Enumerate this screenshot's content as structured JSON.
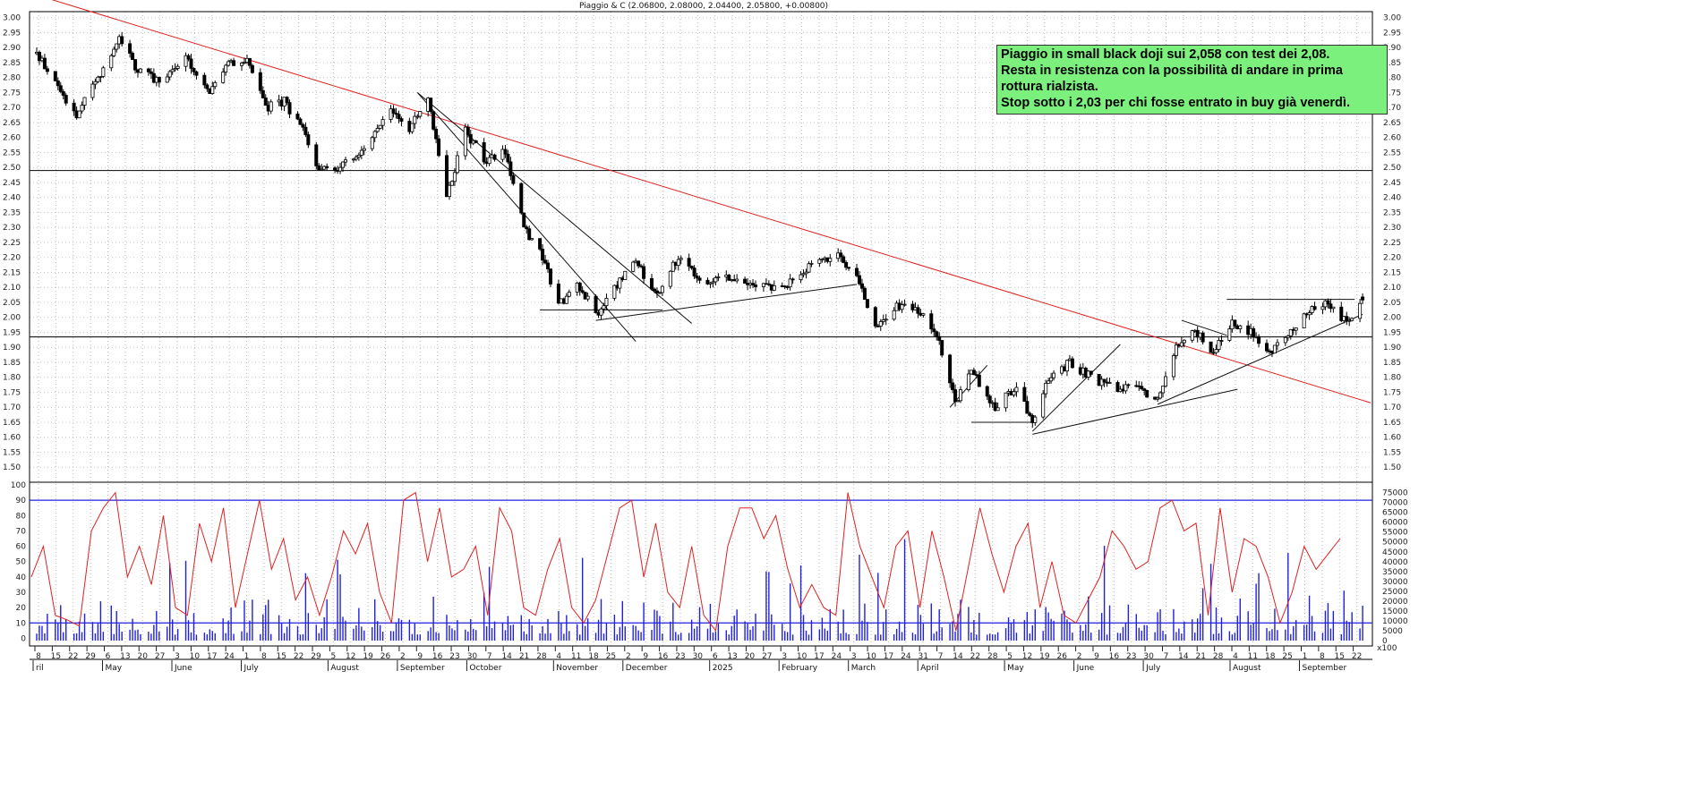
{
  "title": "Piaggio & C (2.06800, 2.08000, 2.04400, 2.05800, +0.00800)",
  "annotation": {
    "lines": [
      "Piaggio in small black doji sui 2,058 con test dei 2,08.",
      "Resta in resistenza con la possibilità di andare in prima",
      "rottura rialzista.",
      "Stop sotto i 2,03 per chi fosse entrato in buy già venerdì."
    ]
  },
  "colors": {
    "price": "#000000",
    "trendline": "#e02020",
    "oscillator": "#e02020",
    "volume": "#2020e0",
    "levels": "#2020e0",
    "note_bg": "#7cf07c"
  },
  "chart_data": [
    {
      "type": "candlestick",
      "ylim": [
        1.45,
        3.02
      ],
      "y_ticks": [
        "3.00",
        "2.95",
        "2.90",
        "2.85",
        "2.80",
        "2.75",
        "2.70",
        "2.65",
        "2.60",
        "2.55",
        "2.50",
        "2.45",
        "2.40",
        "2.35",
        "2.30",
        "2.25",
        "2.20",
        "2.15",
        "2.10",
        "2.05",
        "2.00",
        "1.95",
        "1.90",
        "1.85",
        "1.80",
        "1.75",
        "1.70",
        "1.65",
        "1.60",
        "1.55",
        "1.50"
      ],
      "x_range": [
        "2024-04-29",
        "2025-09-12"
      ],
      "horizontal_levels": [
        2.49,
        1.935
      ],
      "price_path": [
        [
          "2024-04-29",
          2.88
        ],
        [
          "2024-05-08",
          2.75
        ],
        [
          "2024-05-14",
          2.67
        ],
        [
          "2024-05-22",
          2.8
        ],
        [
          "2024-05-30",
          2.94
        ],
        [
          "2024-06-06",
          2.82
        ],
        [
          "2024-06-14",
          2.79
        ],
        [
          "2024-06-24",
          2.87
        ],
        [
          "2024-07-02",
          2.75
        ],
        [
          "2024-07-10",
          2.84
        ],
        [
          "2024-07-17",
          2.86
        ],
        [
          "2024-07-24",
          2.7
        ],
        [
          "2024-07-31",
          2.72
        ],
        [
          "2024-08-07",
          2.62
        ],
        [
          "2024-08-13",
          2.5
        ],
        [
          "2024-08-21",
          2.5
        ],
        [
          "2024-08-30",
          2.57
        ],
        [
          "2024-09-09",
          2.7
        ],
        [
          "2024-09-16",
          2.63
        ],
        [
          "2024-09-23",
          2.74
        ],
        [
          "2024-09-30",
          2.4
        ],
        [
          "2024-10-07",
          2.62
        ],
        [
          "2024-10-15",
          2.52
        ],
        [
          "2024-10-22",
          2.55
        ],
        [
          "2024-10-29",
          2.3
        ],
        [
          "2024-11-05",
          2.2
        ],
        [
          "2024-11-11",
          2.04
        ],
        [
          "2024-11-18",
          2.1
        ],
        [
          "2024-11-26",
          2.02
        ],
        [
          "2024-12-04",
          2.12
        ],
        [
          "2024-12-10",
          2.18
        ],
        [
          "2024-12-18",
          2.08
        ],
        [
          "2024-12-26",
          2.2
        ],
        [
          "2025-01-03",
          2.12
        ],
        [
          "2025-01-15",
          2.14
        ],
        [
          "2025-01-24",
          2.1
        ],
        [
          "2025-02-05",
          2.11
        ],
        [
          "2025-02-14",
          2.18
        ],
        [
          "2025-02-24",
          2.2
        ],
        [
          "2025-03-03",
          2.15
        ],
        [
          "2025-03-10",
          1.96
        ],
        [
          "2025-03-18",
          2.04
        ],
        [
          "2025-03-27",
          2.02
        ],
        [
          "2025-04-03",
          1.92
        ],
        [
          "2025-04-09",
          1.72
        ],
        [
          "2025-04-15",
          1.82
        ],
        [
          "2025-04-24",
          1.7
        ],
        [
          "2025-05-02",
          1.77
        ],
        [
          "2025-05-08",
          1.64
        ],
        [
          "2025-05-13",
          1.78
        ],
        [
          "2025-05-22",
          1.85
        ],
        [
          "2025-05-30",
          1.8
        ],
        [
          "2025-06-06",
          1.77
        ],
        [
          "2025-06-16",
          1.76
        ],
        [
          "2025-06-24",
          1.73
        ],
        [
          "2025-07-01",
          1.9
        ],
        [
          "2025-07-08",
          1.96
        ],
        [
          "2025-07-15",
          1.88
        ],
        [
          "2025-07-22",
          1.98
        ],
        [
          "2025-07-29",
          1.95
        ],
        [
          "2025-08-04",
          1.88
        ],
        [
          "2025-08-12",
          1.94
        ],
        [
          "2025-08-20",
          2.02
        ],
        [
          "2025-08-27",
          2.05
        ],
        [
          "2025-09-03",
          1.98
        ],
        [
          "2025-09-09",
          2.06
        ]
      ],
      "last_candle": {
        "open": 2.068,
        "high": 2.08,
        "low": 2.044,
        "close": 2.058,
        "change": 0.008
      }
    },
    {
      "type": "line",
      "series": [
        {
          "values": [
            40,
            60,
            15,
            12,
            8,
            70,
            85,
            95,
            40,
            60,
            35,
            80,
            20,
            15,
            75,
            50,
            85,
            20,
            55,
            90,
            45,
            65,
            25,
            40,
            15,
            40,
            70,
            55,
            75,
            30,
            10,
            90,
            95,
            50,
            85,
            40,
            45,
            60,
            15,
            85,
            70,
            20,
            15,
            45,
            65,
            20,
            10,
            25,
            55,
            85,
            90,
            40,
            75,
            30,
            20,
            60,
            15,
            5,
            60,
            85,
            85,
            65,
            80,
            45,
            20,
            35,
            20,
            15,
            95,
            60,
            40,
            20,
            60,
            70,
            20,
            70,
            40,
            5,
            45,
            85,
            55,
            30,
            60,
            75,
            20,
            50,
            15,
            10,
            25,
            40,
            70,
            60,
            45,
            50,
            85,
            90,
            70,
            75,
            15,
            85,
            30,
            65,
            60,
            40,
            10,
            30,
            60,
            45,
            55,
            65
          ]
        }
      ],
      "ylim": [
        -5,
        100
      ],
      "y_ticks": [
        "100",
        "90",
        "80",
        "70",
        "60",
        "50",
        "40",
        "30",
        "20",
        "10",
        "0"
      ],
      "levels": [
        90,
        10
      ]
    },
    {
      "type": "bar",
      "name": "volume",
      "ylim": [
        0,
        78000
      ],
      "y_ticks": [
        "75000",
        "70000",
        "65000",
        "60000",
        "55000",
        "50000",
        "45000",
        "40000",
        "35000",
        "30000",
        "25000",
        "20000",
        "15000",
        "10000",
        "5000",
        "0"
      ]
    }
  ],
  "x_axis": {
    "days": [
      "8",
      "15",
      "22",
      "29",
      "6",
      "13",
      "20",
      "27",
      "3",
      "10",
      "17",
      "24",
      "1",
      "8",
      "15",
      "22",
      "29",
      "5",
      "12",
      "19",
      "26",
      "2",
      "9",
      "16",
      "23",
      "30",
      "7",
      "14",
      "21",
      "28",
      "4",
      "11",
      "18",
      "25",
      "2",
      "9",
      "16",
      "23",
      "30",
      "6",
      "13",
      "20",
      "27",
      "3",
      "10",
      "17",
      "24",
      "3",
      "10",
      "17",
      "24",
      "31",
      "7",
      "14",
      "22",
      "28",
      "5",
      "12",
      "19",
      "26",
      "2",
      "9",
      "16",
      "23",
      "30",
      "7",
      "14",
      "21",
      "28",
      "4",
      "11",
      "18",
      "25",
      "1",
      "8",
      "15",
      "22"
    ],
    "months": [
      "ril",
      "May",
      "June",
      "July",
      "August",
      "September",
      "October",
      "November",
      "December",
      "2025",
      "February",
      "March",
      "April",
      "May",
      "June",
      "July",
      "August",
      "September"
    ]
  },
  "scale_label": "x100"
}
